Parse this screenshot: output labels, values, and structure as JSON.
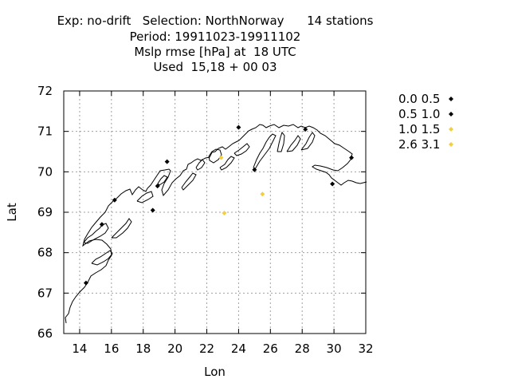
{
  "chart_data": {
    "type": "scatter",
    "title_lines": [
      "Exp: no-drift   Selection: NorthNorway      14 stations",
      "Period: 19911023-19911102",
      "Mslp rmse [hPa] at  18 UTC",
      "Used  15,18 + 00 03"
    ],
    "xlabel": "Lon",
    "ylabel": "Lat",
    "xlim": [
      13,
      32
    ],
    "ylim": [
      66,
      72
    ],
    "xticks": [
      14,
      16,
      18,
      20,
      22,
      24,
      26,
      28,
      30,
      32
    ],
    "yticks": [
      66,
      67,
      68,
      69,
      70,
      71,
      72
    ],
    "grid": true,
    "legend_position": "right",
    "series": [
      {
        "name": "0.0 0.5",
        "color": "#000000",
        "points": [
          [
            14.4,
            67.25
          ],
          [
            15.4,
            68.7
          ],
          [
            16.2,
            69.3
          ],
          [
            18.6,
            69.05
          ],
          [
            18.9,
            69.65
          ],
          [
            19.5,
            70.25
          ],
          [
            24.0,
            71.1
          ],
          [
            25.0,
            70.05
          ],
          [
            28.2,
            71.05
          ],
          [
            31.1,
            70.35
          ]
        ]
      },
      {
        "name": "0.5 1.0",
        "color": "#000000",
        "points": [
          [
            29.9,
            69.7
          ]
        ]
      },
      {
        "name": "1.0 1.5",
        "color": "#f0d040",
        "points": [
          [
            22.9,
            70.35
          ],
          [
            25.5,
            69.45
          ],
          [
            23.1,
            68.98
          ]
        ]
      },
      {
        "name": "2.6 3.1",
        "color": "#f0d040",
        "points": []
      }
    ]
  }
}
